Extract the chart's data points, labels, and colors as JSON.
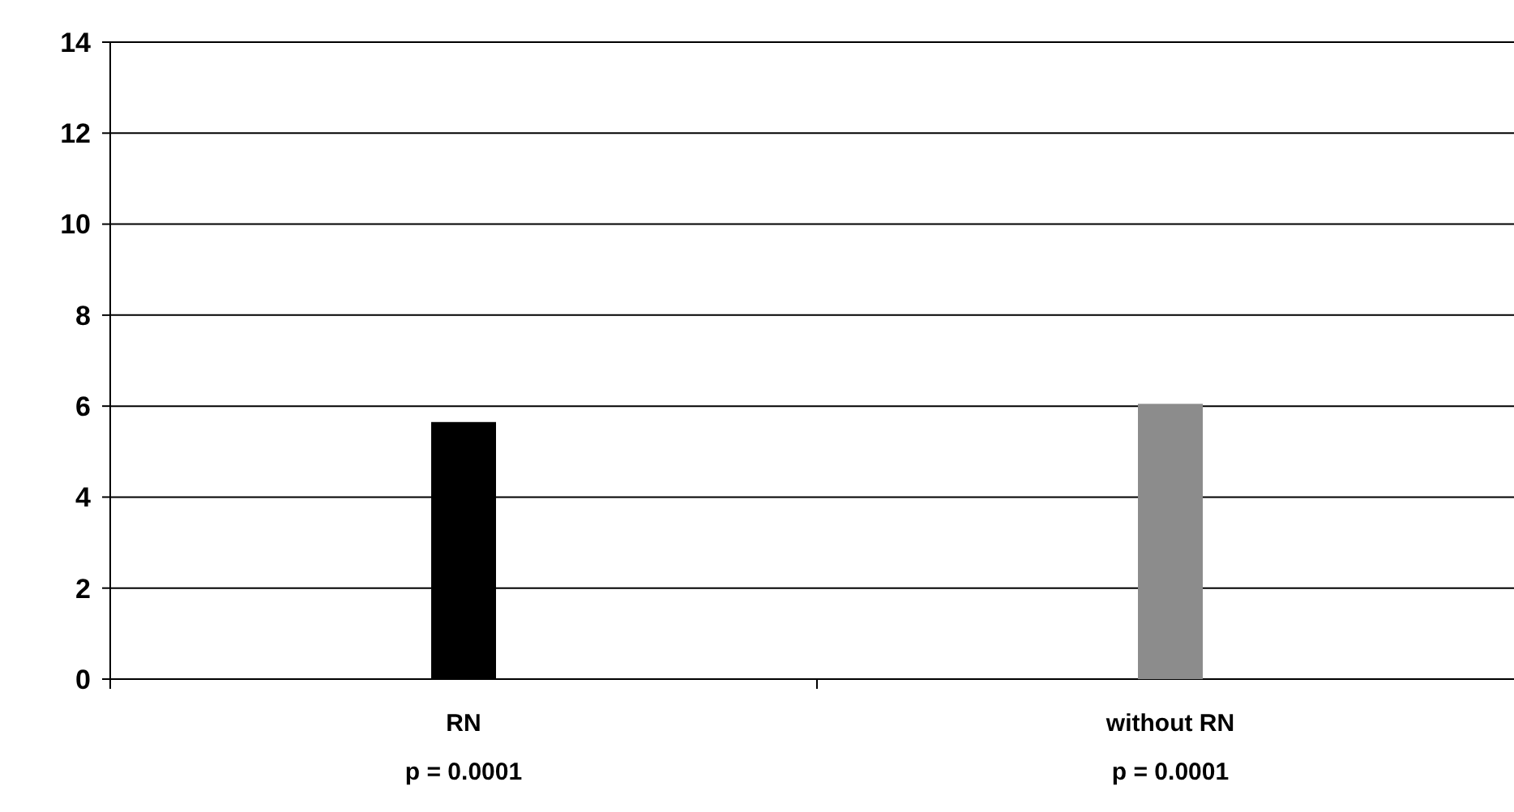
{
  "chart_data": {
    "type": "bar",
    "categories": [
      "RN\np = 0.0001",
      "without RN\np = 0.0001"
    ],
    "values": [
      5.65,
      6.05
    ],
    "colors": [
      "#000000",
      "#8c8c8c"
    ],
    "ylim": [
      0,
      14
    ],
    "yticks": [
      0,
      2,
      4,
      6,
      8,
      10,
      12,
      14
    ],
    "grid": "y"
  }
}
